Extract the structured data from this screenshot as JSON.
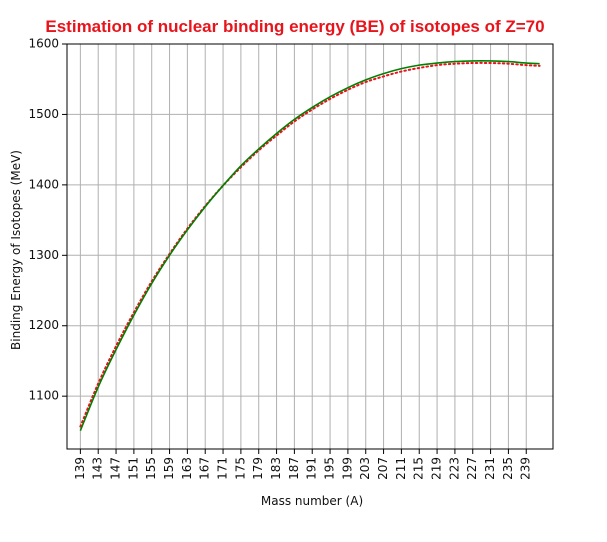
{
  "chart_data": {
    "type": "line",
    "title": "Estimation of nuclear binding energy (BE) of isotopes of Z=70",
    "xlabel": "Mass number (A)",
    "ylabel": "Binding Energy of Isotopes (MeV)",
    "xlim": [
      136,
      245
    ],
    "ylim": [
      1025,
      1600
    ],
    "x_ticks": [
      139,
      143,
      147,
      151,
      155,
      159,
      163,
      167,
      171,
      175,
      179,
      183,
      187,
      191,
      195,
      199,
      203,
      207,
      211,
      215,
      219,
      223,
      227,
      231,
      235,
      239
    ],
    "y_ticks": [
      1100,
      1200,
      1300,
      1400,
      1500,
      1600
    ],
    "grid": true,
    "legend": "none",
    "x": [
      139,
      143,
      147,
      151,
      155,
      159,
      163,
      167,
      171,
      175,
      179,
      183,
      187,
      191,
      195,
      199,
      203,
      207,
      211,
      215,
      219,
      223,
      227,
      231,
      235,
      239,
      242
    ],
    "series": [
      {
        "color": "#008000",
        "style": "solid",
        "values": [
          1051,
          1113,
          1166,
          1215,
          1260,
          1300,
          1336,
          1369,
          1399,
          1427,
          1451,
          1473,
          1493,
          1510,
          1525,
          1538,
          1549,
          1558,
          1565,
          1570,
          1573,
          1575,
          1576,
          1576,
          1575,
          1573,
          1572
        ]
      },
      {
        "color": "#e8141c",
        "style": "dotted",
        "values": [
          1057,
          1118,
          1171,
          1219,
          1263,
          1302,
          1338,
          1370,
          1399,
          1425,
          1449,
          1470,
          1490,
          1507,
          1522,
          1535,
          1546,
          1554,
          1561,
          1566,
          1570,
          1572,
          1573,
          1573,
          1572,
          1570,
          1569
        ]
      }
    ]
  }
}
